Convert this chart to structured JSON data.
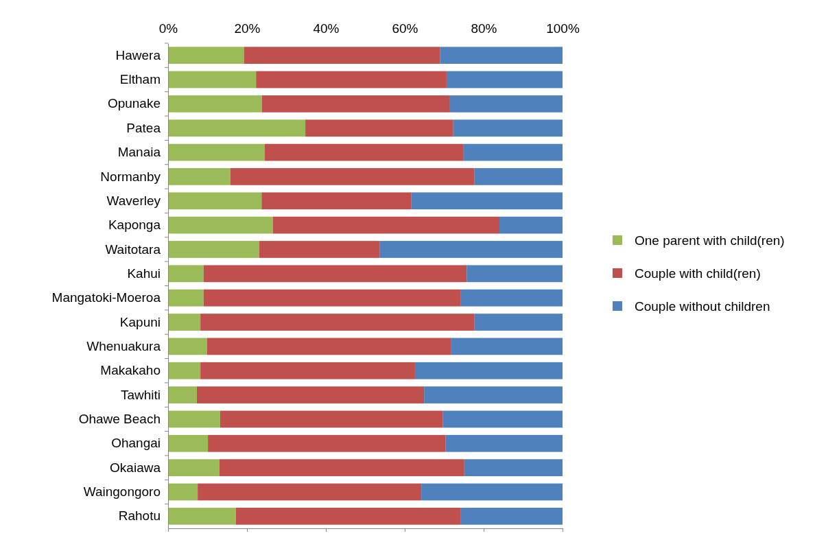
{
  "chart_data": {
    "type": "bar",
    "orientation": "horizontal",
    "stacked": true,
    "legend": "right",
    "grid": false,
    "categories": [
      "Hawera",
      "Eltham",
      "Opunake",
      "Patea",
      "Manaia",
      "Normanby",
      "Waverley",
      "Kaponga",
      "Waitotara",
      "Kahui",
      "Mangatoki-Moeroa",
      "Kapuni",
      "Whenuakura",
      "Makakaho",
      "Tawhiti",
      "Ohawe Beach",
      "Ohangai",
      "Okaiawa",
      "Waingongoro",
      "Rahotu"
    ],
    "xlim": [
      0,
      100
    ],
    "xticks": [
      {
        "value": 0,
        "label": "0%"
      },
      {
        "value": 20,
        "label": "20%"
      },
      {
        "value": 40,
        "label": "40%"
      },
      {
        "value": 60,
        "label": "60%"
      },
      {
        "value": 80,
        "label": "80%"
      },
      {
        "value": 100,
        "label": "100%"
      }
    ],
    "series": [
      {
        "name": "One parent with child(ren)",
        "color": "#9bbb59",
        "values": [
          19.3,
          22.3,
          23.8,
          34.8,
          24.5,
          15.8,
          23.7,
          26.6,
          23.1,
          9.0,
          9.0,
          8.2,
          9.9,
          8.2,
          7.3,
          13.2,
          10.1,
          13.0,
          7.5,
          17.2
        ]
      },
      {
        "name": "Couple with child(ren)",
        "color": "#c0504d",
        "values": [
          49.7,
          48.3,
          47.5,
          37.5,
          50.3,
          61.8,
          38.0,
          57.4,
          30.6,
          66.7,
          65.1,
          69.4,
          61.9,
          54.4,
          57.6,
          56.4,
          60.2,
          62.1,
          56.7,
          56.9
        ]
      },
      {
        "name": "Couple without children",
        "color": "#4f81bd",
        "values": [
          31.0,
          29.4,
          28.7,
          27.7,
          25.2,
          22.4,
          38.3,
          16.0,
          46.3,
          24.3,
          25.9,
          22.4,
          28.2,
          37.4,
          35.1,
          30.4,
          29.7,
          24.9,
          35.8,
          25.9
        ]
      }
    ]
  }
}
